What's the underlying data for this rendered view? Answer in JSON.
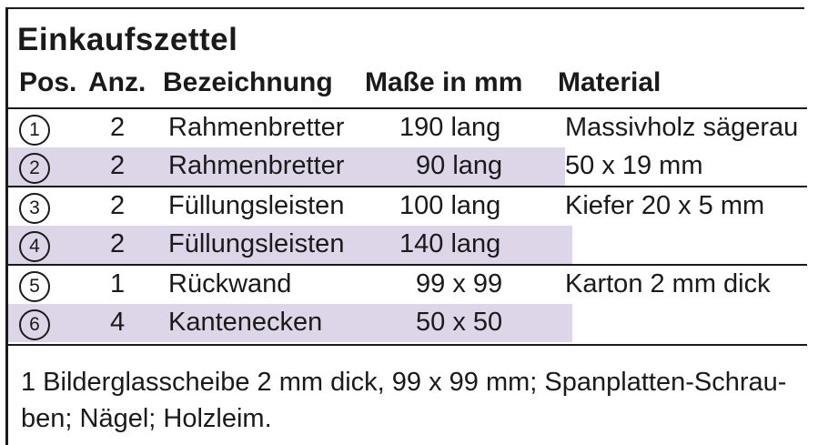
{
  "title": "Einkaufszettel",
  "headers": {
    "pos": "Pos.",
    "anz": "Anz.",
    "bezeichnung": "Bezeichnung",
    "masse": "Maße in mm",
    "material": "Material"
  },
  "rows": [
    {
      "pos": "1",
      "anz": "2",
      "bezeichnung": "Rahmenbretter",
      "masse": "190 lang",
      "material": "Massivholz sägerau"
    },
    {
      "pos": "2",
      "anz": "2",
      "bezeichnung": "Rahmenbretter",
      "masse": "90 lang",
      "material": "50 x 19 mm"
    },
    {
      "pos": "3",
      "anz": "2",
      "bezeichnung": "Füllungsleisten",
      "masse": "100 lang",
      "material": "Kiefer 20 x 5 mm"
    },
    {
      "pos": "4",
      "anz": "2",
      "bezeichnung": "Füllungsleisten",
      "masse": "140 lang",
      "material": ""
    },
    {
      "pos": "5",
      "anz": "1",
      "bezeichnung": "Rückwand",
      "masse": "99 x 99",
      "material": "Karton 2 mm dick"
    },
    {
      "pos": "6",
      "anz": "4",
      "bezeichnung": "Kantenecken",
      "masse": "50 x 50",
      "material": ""
    }
  ],
  "note": {
    "line1": "1 Bilderglasscheibe 2 mm dick, 99 x 99 mm; Spanplatten-Schrau-",
    "line2": "ben; Nägel; Holzleim."
  },
  "colors": {
    "band": "#dcd6e8",
    "line": "#1a1a1a"
  }
}
